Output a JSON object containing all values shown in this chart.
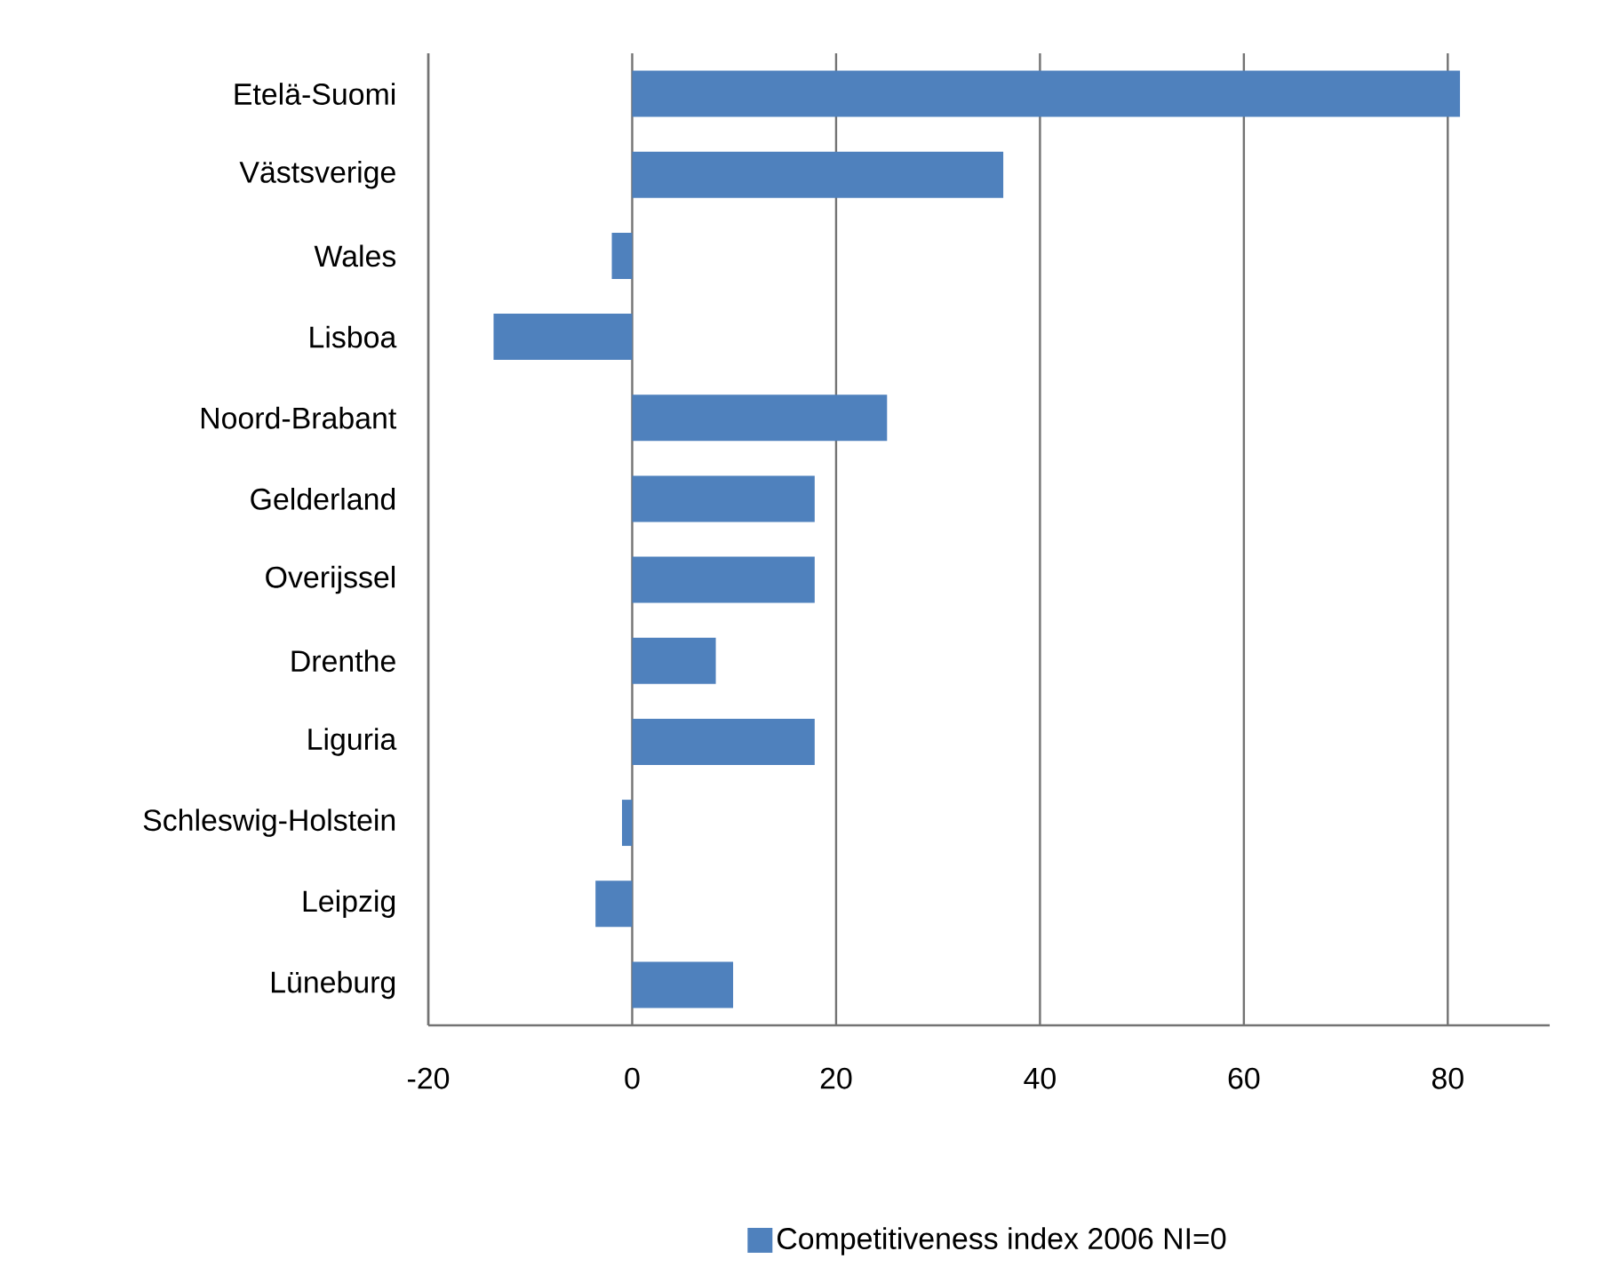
{
  "chart_data": {
    "type": "bar",
    "orientation": "horizontal",
    "categories": [
      "Etelä-Suomi",
      "Västsverige",
      "Wales",
      "Lisboa",
      "Noord-Brabant",
      "Gelderland",
      "Overijssel",
      "Drenthe",
      "Liguria",
      "Schleswig-Holstein",
      "Leipzig",
      "Lüneburg"
    ],
    "series": [
      {
        "name": "Competitiveness index 2006 NI=0",
        "color": "#4f81bd",
        "values": [
          81.2,
          36.4,
          -2.0,
          -13.6,
          25.0,
          17.9,
          17.9,
          8.2,
          17.9,
          -1.0,
          -3.6,
          9.9
        ]
      }
    ],
    "xlim": [
      -20,
      90
    ],
    "xticks": [
      -20,
      0,
      20,
      40,
      60,
      80
    ],
    "grid": "x",
    "legend": "bottom"
  }
}
